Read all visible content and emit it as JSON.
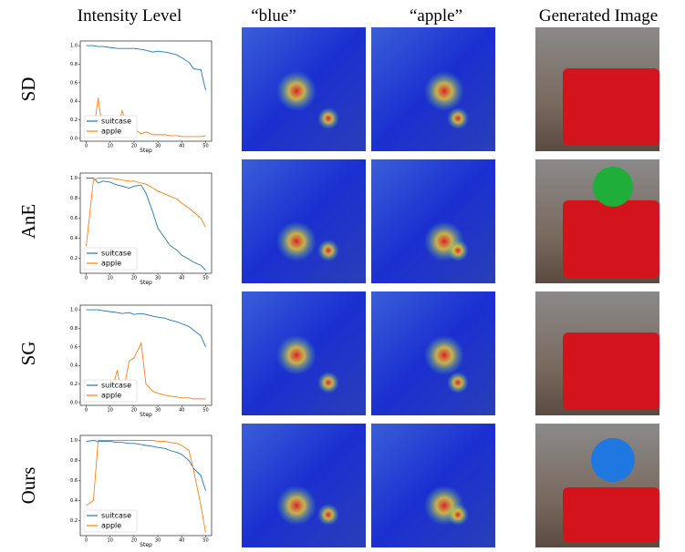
{
  "column_headers": [
    "Intensity Level",
    "“blue”",
    "“apple”",
    "Generated Image"
  ],
  "row_labels": [
    "SD",
    "AnE",
    "SG",
    "Ours"
  ],
  "chart_data": [
    {
      "type": "line",
      "x_label": "Step",
      "legend": "lower left",
      "x": [
        0,
        3,
        5,
        7,
        10,
        13,
        15,
        18,
        20,
        23,
        25,
        28,
        30,
        33,
        35,
        38,
        40,
        43,
        45,
        48,
        50
      ],
      "xlim": [
        -2.5,
        52.5
      ],
      "xticks": [
        0,
        10,
        20,
        30,
        40,
        50
      ],
      "ylim": [
        -0.03,
        1.05
      ],
      "yticks": [
        {
          "value": 0,
          "label": "0.0"
        },
        0.2,
        0.4,
        0.6,
        0.8,
        {
          "value": 1,
          "label": "1.0"
        }
      ],
      "series": [
        {
          "name": "suitcase",
          "color": "#1f77b4",
          "values": [
            1.0,
            1.0,
            0.99,
            0.99,
            0.98,
            0.97,
            0.97,
            0.97,
            0.97,
            0.96,
            0.95,
            0.93,
            0.94,
            0.93,
            0.92,
            0.9,
            0.87,
            0.82,
            0.75,
            0.74,
            0.52
          ]
        },
        {
          "name": "apple",
          "color": "#ff7f0e",
          "values": [
            0.02,
            0.05,
            0.44,
            0.05,
            0.1,
            0.07,
            0.3,
            0.08,
            0.1,
            0.05,
            0.07,
            0.04,
            0.04,
            0.04,
            0.03,
            0.03,
            0.02,
            0.02,
            0.02,
            0.02,
            0.03
          ]
        }
      ]
    },
    {
      "type": "line",
      "x_label": "Step",
      "legend": "lower left",
      "x": [
        0,
        3,
        5,
        7,
        10,
        13,
        15,
        18,
        20,
        23,
        25,
        28,
        30,
        33,
        35,
        38,
        40,
        43,
        45,
        48,
        50
      ],
      "xlim": [
        -2.5,
        52.5
      ],
      "xticks": [
        0,
        10,
        20,
        30,
        40,
        50
      ],
      "ylim": [
        0.05,
        1.05
      ],
      "yticks": [
        0.2,
        0.4,
        0.6,
        0.8,
        {
          "value": 1,
          "label": "1.0"
        }
      ],
      "series": [
        {
          "name": "suitcase",
          "color": "#1f77b4",
          "values": [
            1.0,
            1.0,
            0.95,
            0.97,
            0.96,
            0.93,
            0.92,
            0.9,
            0.92,
            0.93,
            0.85,
            0.65,
            0.5,
            0.4,
            0.33,
            0.28,
            0.23,
            0.19,
            0.16,
            0.13,
            0.08
          ]
        },
        {
          "name": "apple",
          "color": "#ff7f0e",
          "values": [
            0.32,
            0.98,
            1.0,
            1.0,
            1.0,
            0.99,
            0.98,
            0.97,
            0.97,
            0.95,
            0.94,
            0.9,
            0.87,
            0.84,
            0.82,
            0.79,
            0.75,
            0.7,
            0.66,
            0.6,
            0.51
          ]
        }
      ]
    },
    {
      "type": "line",
      "x_label": "Step",
      "legend": "lower left",
      "x": [
        0,
        3,
        5,
        7,
        10,
        13,
        15,
        18,
        20,
        23,
        25,
        28,
        30,
        33,
        35,
        38,
        40,
        43,
        45,
        48,
        50
      ],
      "xlim": [
        -2.5,
        52.5
      ],
      "xticks": [
        0,
        10,
        20,
        30,
        40,
        50
      ],
      "ylim": [
        -0.03,
        1.05
      ],
      "yticks": [
        {
          "value": 0,
          "label": "0.0"
        },
        0.2,
        0.4,
        0.6,
        0.8,
        {
          "value": 1,
          "label": "1.0"
        }
      ],
      "series": [
        {
          "name": "suitcase",
          "color": "#1f77b4",
          "values": [
            1.0,
            1.0,
            1.0,
            0.99,
            0.98,
            0.97,
            0.96,
            0.97,
            0.95,
            0.96,
            0.95,
            0.93,
            0.92,
            0.91,
            0.89,
            0.87,
            0.85,
            0.82,
            0.78,
            0.72,
            0.6
          ]
        },
        {
          "name": "apple",
          "color": "#ff7f0e",
          "values": [
            0.02,
            0.1,
            0.05,
            0.15,
            0.05,
            0.35,
            0.05,
            0.45,
            0.48,
            0.64,
            0.2,
            0.12,
            0.1,
            0.08,
            0.07,
            0.06,
            0.05,
            0.05,
            0.04,
            0.04,
            0.04
          ]
        }
      ]
    },
    {
      "type": "line",
      "x_label": "Step",
      "legend": "lower left",
      "x": [
        0,
        3,
        5,
        7,
        10,
        13,
        15,
        18,
        20,
        23,
        25,
        28,
        30,
        33,
        35,
        38,
        40,
        43,
        45,
        48,
        50
      ],
      "xlim": [
        -2.5,
        52.5
      ],
      "xticks": [
        0,
        10,
        20,
        30,
        40,
        50
      ],
      "ylim": [
        0.05,
        1.05
      ],
      "yticks": [
        0.2,
        0.4,
        0.6,
        0.8,
        {
          "value": 1,
          "label": "1.0"
        }
      ],
      "series": [
        {
          "name": "suitcase",
          "color": "#1f77b4",
          "values": [
            0.99,
            1.0,
            0.99,
            0.99,
            0.99,
            0.98,
            0.98,
            0.97,
            0.97,
            0.96,
            0.95,
            0.94,
            0.93,
            0.92,
            0.9,
            0.88,
            0.86,
            0.8,
            0.72,
            0.65,
            0.5
          ]
        },
        {
          "name": "apple",
          "color": "#ff7f0e",
          "values": [
            0.35,
            0.4,
            1.0,
            1.0,
            1.0,
            1.0,
            1.0,
            1.0,
            1.0,
            1.0,
            1.0,
            1.0,
            0.99,
            0.99,
            0.98,
            0.97,
            0.95,
            0.9,
            0.7,
            0.35,
            0.08
          ]
        }
      ]
    }
  ]
}
